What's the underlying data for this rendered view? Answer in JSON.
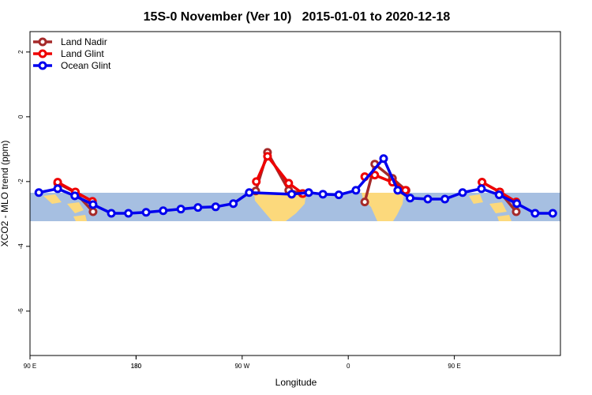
{
  "chart_data": {
    "type": "line",
    "title": "15S-0 November (Ver 10)   2015-01-01 to 2020-12-18",
    "x_label": "Longitude",
    "y_label": "XCO2 - MLO trend (ppm)",
    "xlim": [
      90,
      540
    ],
    "xticks": [
      {
        "value": 90,
        "label": "90 E"
      },
      180,
      {
        "value": 270,
        "label": "90 W"
      },
      {
        "value": 360,
        "label": "0"
      },
      {
        "value": 450,
        "label": "90 E"
      },
      180.0001
    ],
    "ylim": [
      -7.37,
      2.63
    ],
    "yticks": [
      2,
      0,
      -2,
      -4,
      -6
    ],
    "legend": "top-left",
    "series": [
      {
        "name": "Land Nadir",
        "color": "#a52a2a",
        "x": [
          113.5,
          128.5,
          143.5,
          null,
          281.5,
          291.5,
          309.5,
          321,
          null,
          374,
          382.5,
          397.5,
          409,
          null,
          473.5,
          488.5,
          502.5
        ],
        "values": [
          -2.05,
          -2.34,
          -2.93,
          null,
          -2.29,
          -1.1,
          -2.27,
          -2.37,
          null,
          -2.63,
          -1.46,
          -1.9,
          -2.27,
          null,
          -2.02,
          -2.32,
          -2.93
        ]
      },
      {
        "name": "Land Glint",
        "color": "#ee0000",
        "x": [
          113.5,
          128.5,
          143,
          null,
          282,
          291.5,
          309.5,
          321.5,
          null,
          374,
          382.5,
          397.5,
          408.5,
          null,
          473.5,
          488.5,
          502.5
        ],
        "values": [
          -2.02,
          -2.32,
          -2.61,
          null,
          -2.0,
          -1.22,
          -2.05,
          -2.37,
          null,
          -1.85,
          -1.8,
          -2.02,
          -2.27,
          null,
          -2.02,
          -2.32,
          -2.63
        ]
      },
      {
        "name": "Ocean Glint",
        "color": "#0000ee",
        "x": [
          97.5,
          113.5,
          128,
          143.5,
          159,
          173.5,
          188.5,
          203,
          218,
          232.5,
          247.5,
          262.5,
          276,
          312,
          326.5,
          338.5,
          352,
          366.5,
          390,
          402,
          412.5,
          427.5,
          442,
          457,
          473,
          488,
          503,
          518.5,
          533.5
        ],
        "values": [
          -2.34,
          -2.22,
          -2.44,
          -2.71,
          -2.98,
          -2.98,
          -2.95,
          -2.9,
          -2.85,
          -2.8,
          -2.78,
          -2.68,
          -2.34,
          -2.39,
          -2.34,
          -2.39,
          -2.41,
          -2.27,
          -1.29,
          -2.27,
          -2.51,
          -2.54,
          -2.54,
          -2.34,
          -2.22,
          -2.41,
          -2.68,
          -2.98,
          -2.98
        ]
      }
    ]
  }
}
